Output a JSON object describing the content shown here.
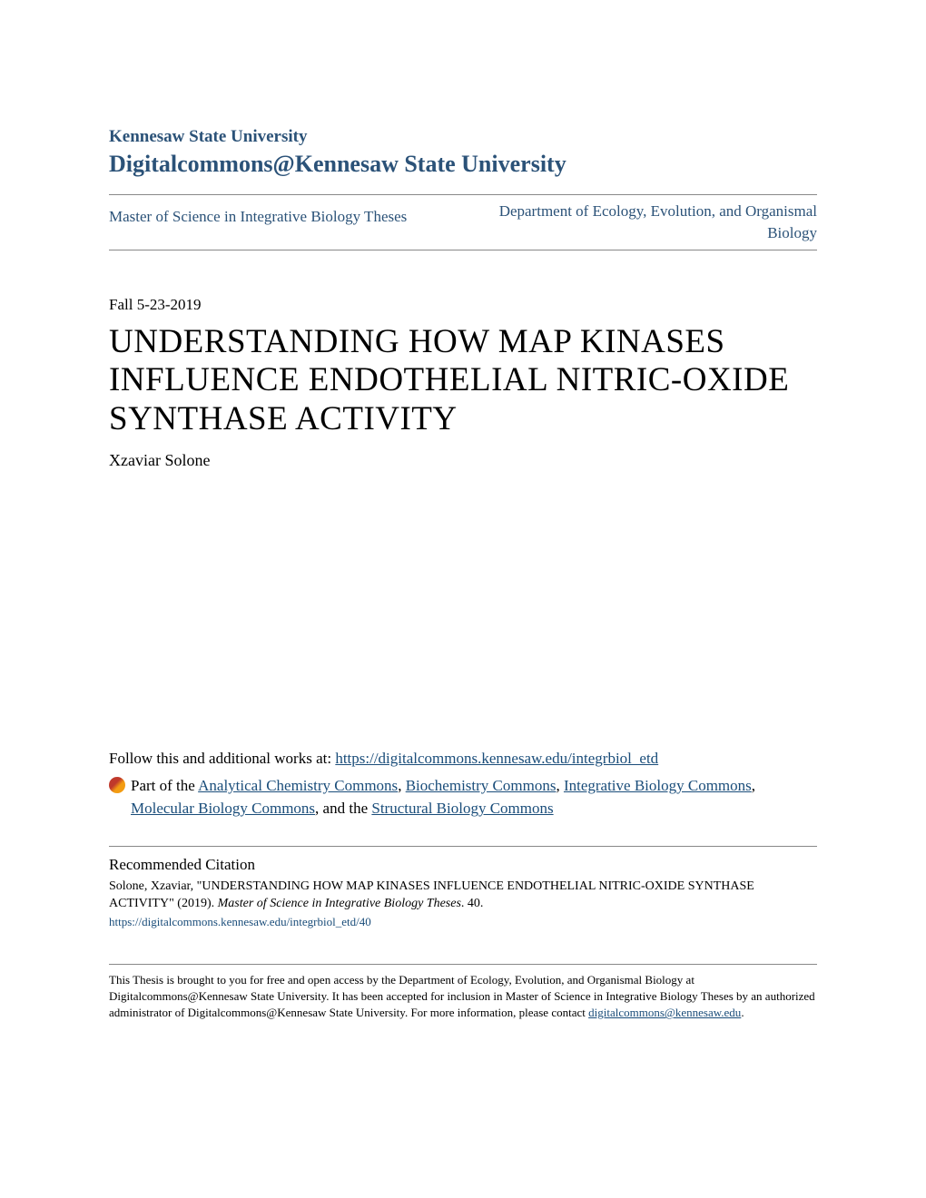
{
  "header": {
    "university": "Kennesaw State University",
    "site": "Digitalcommons@Kennesaw State University"
  },
  "breadcrumb": {
    "left": "Master of Science in Integrative Biology Theses",
    "right": "Department of Ecology, Evolution, and Organismal Biology"
  },
  "date": "Fall 5-23-2019",
  "title": "UNDERSTANDING HOW MAP KINASES INFLUENCE ENDOTHELIAL NITRIC-OXIDE SYNTHASE ACTIVITY",
  "author": "Xzaviar Solone",
  "follow": {
    "prefix": "Follow this and additional works at: ",
    "url": "https://digitalcommons.kennesaw.edu/integrbiol_etd",
    "part_prefix": "Part of the ",
    "commons": [
      "Analytical Chemistry Commons",
      "Biochemistry Commons",
      "Integrative Biology Commons",
      "Molecular Biology Commons",
      "Structural Biology Commons"
    ],
    "and_the": ", and the "
  },
  "citation": {
    "heading": "Recommended Citation",
    "text_part1": "Solone, Xzaviar, \"UNDERSTANDING HOW MAP KINASES INFLUENCE ENDOTHELIAL NITRIC-OXIDE SYNTHASE ACTIVITY\" (2019). ",
    "text_italic": "Master of Science in Integrative Biology Theses",
    "text_part2": ". 40.",
    "link": "https://digitalcommons.kennesaw.edu/integrbiol_etd/40"
  },
  "footer": {
    "text_part1": "This Thesis is brought to you for free and open access by the Department of Ecology, Evolution, and Organismal Biology at Digitalcommons@Kennesaw State University. It has been accepted for inclusion in Master of Science in Integrative Biology Theses by an authorized administrator of Digitalcommons@Kennesaw State University. For more information, please contact ",
    "contact": "digitalcommons@kennesaw.edu",
    "text_part2": "."
  },
  "colors": {
    "link_blue": "#1a4d7a",
    "header_blue": "#2b5278",
    "border_gray": "#888888",
    "text_black": "#000000",
    "background": "#ffffff"
  },
  "typography": {
    "university_fontsize": 19,
    "site_fontsize": 26,
    "title_fontsize": 37,
    "body_fontsize": 17,
    "citation_fontsize": 14,
    "footer_fontsize": 13
  }
}
